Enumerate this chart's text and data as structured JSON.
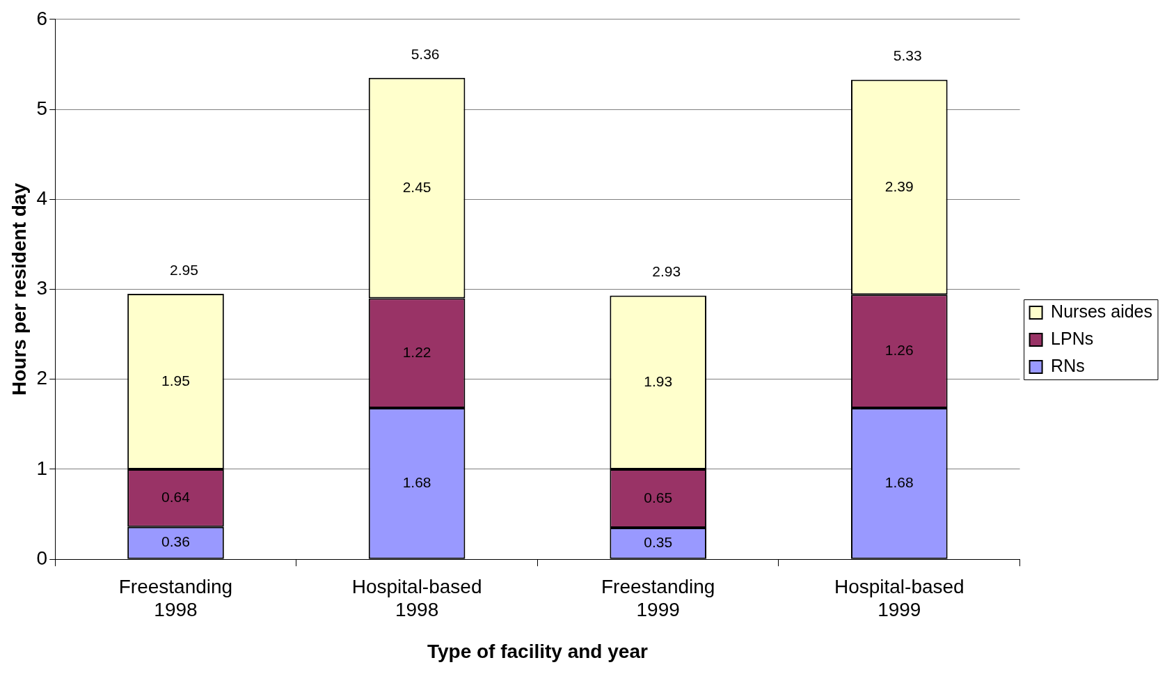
{
  "chart_data": {
    "type": "bar",
    "stacked": true,
    "xlabel": "Type of facility and year",
    "ylabel": "Hours per resident day",
    "categories": [
      "Freestanding\n1998",
      "Hospital-based\n1998",
      "Freestanding\n1999",
      "Hospital-based\n1999"
    ],
    "series": [
      {
        "name": "RNs",
        "color": "#9999ff",
        "values": [
          0.36,
          1.68,
          0.35,
          1.68
        ]
      },
      {
        "name": "LPNs",
        "color": "#993366",
        "values": [
          0.64,
          1.22,
          0.65,
          1.26
        ]
      },
      {
        "name": "Nurses aides",
        "color": "#ffffcc",
        "values": [
          1.95,
          2.45,
          1.93,
          2.39
        ]
      }
    ],
    "totals": [
      "2.95",
      "5.36",
      "2.93",
      "5.33"
    ],
    "data_labels": true,
    "ylim": [
      0,
      6
    ],
    "yticks": [
      0,
      1,
      2,
      3,
      4,
      5,
      6
    ],
    "grid": "y",
    "legend": "right"
  }
}
